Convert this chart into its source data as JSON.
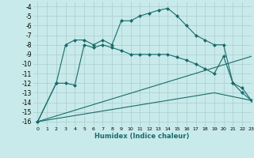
{
  "xlabel": "Humidex (Indice chaleur)",
  "bg_color": "#c8eaea",
  "grid_color": "#aacccc",
  "line_color": "#1a6b6b",
  "xlim": [
    -0.5,
    23
  ],
  "ylim": [
    -16.5,
    -3.5
  ],
  "xtick_labels": [
    "0",
    "1",
    "2",
    "3",
    "4",
    "5",
    "6",
    "7",
    "8",
    "9",
    "10",
    "11",
    "12",
    "13",
    "14",
    "15",
    "16",
    "17",
    "18",
    "19",
    "20",
    "21",
    "22",
    "23"
  ],
  "xtick_pos": [
    0,
    1,
    2,
    3,
    4,
    5,
    6,
    7,
    8,
    9,
    10,
    11,
    12,
    13,
    14,
    15,
    16,
    17,
    18,
    19,
    20,
    21,
    22,
    23
  ],
  "ytick_pos": [
    -4,
    -5,
    -6,
    -7,
    -8,
    -9,
    -10,
    -11,
    -12,
    -13,
    -14,
    -15,
    -16
  ],
  "ytick_labels": [
    "-4",
    "-5",
    "-6",
    "-7",
    "-8",
    "-9",
    "-10",
    "-11",
    "-12",
    "-13",
    "-14",
    "-15",
    "-16"
  ],
  "line1_x": [
    0,
    2,
    3,
    4,
    5,
    6,
    7,
    8,
    9,
    10,
    11,
    12,
    13,
    14,
    15,
    16,
    17,
    18,
    19,
    20,
    21,
    22,
    23
  ],
  "line1_y": [
    -16,
    -12,
    -8,
    -7.5,
    -7.5,
    -8.0,
    -7.5,
    -8.0,
    -5.5,
    -5.5,
    -5.0,
    -4.7,
    -4.4,
    -4.2,
    -5.0,
    -6.0,
    -7.0,
    -7.5,
    -8.0,
    -8.0,
    -12.0,
    -12.5,
    -13.8
  ],
  "line2_x": [
    0,
    2,
    3,
    4,
    5,
    6,
    7,
    8,
    9,
    10,
    11,
    12,
    13,
    14,
    15,
    16,
    17,
    18,
    19,
    20,
    21,
    22,
    23
  ],
  "line2_y": [
    -16,
    -12,
    -12.0,
    -12.2,
    -8.0,
    -8.3,
    -8.0,
    -8.3,
    -8.6,
    -9.0,
    -9.0,
    -9.0,
    -9.0,
    -9.0,
    -9.3,
    -9.6,
    -10.0,
    -10.5,
    -11.0,
    -9.2,
    -12.0,
    -13.0,
    -13.8
  ],
  "line3_x": [
    0,
    23
  ],
  "line3_y": [
    -16,
    -9.2
  ],
  "line4_x": [
    0,
    19,
    23
  ],
  "line4_y": [
    -16,
    -13.0,
    -13.8
  ],
  "markersize": 2.5,
  "linewidth": 0.8
}
